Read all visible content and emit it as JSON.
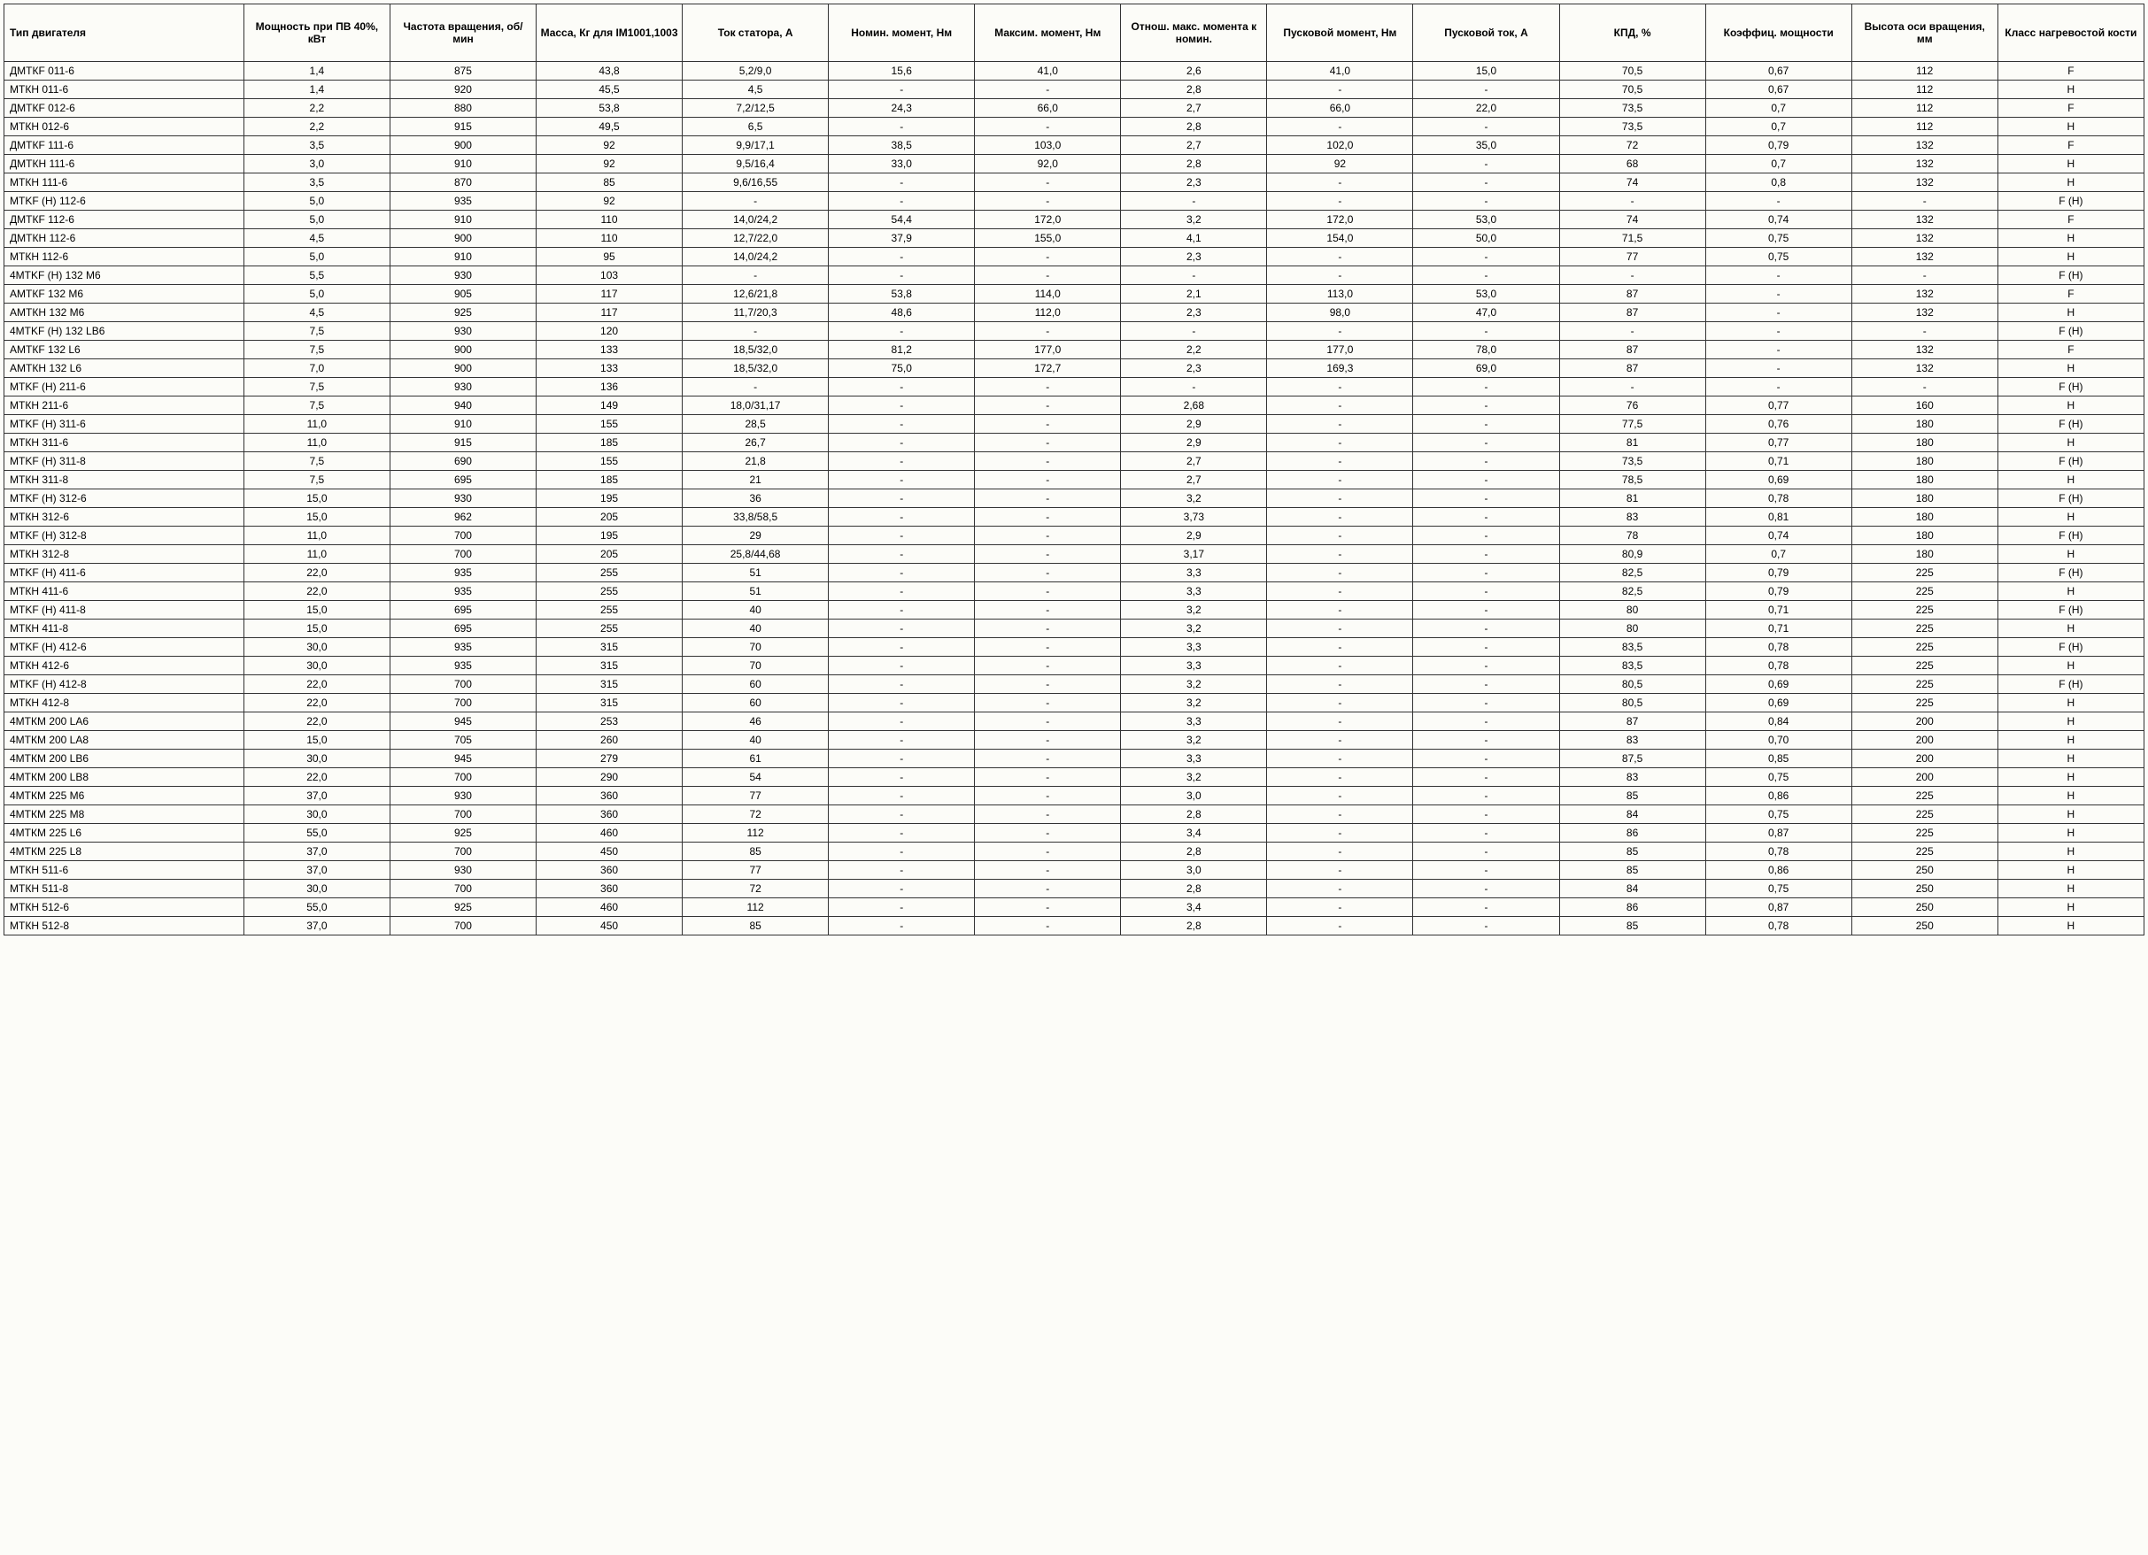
{
  "table": {
    "background_color": "#fcfcf8",
    "border_color": "#333333",
    "text_color": "#000000",
    "header_fontsize": 12,
    "cell_fontsize": 12,
    "columns": [
      {
        "label": "Тип двигателя",
        "align": "left"
      },
      {
        "label": "Мощность при ПВ 40%, кВт",
        "align": "center"
      },
      {
        "label": "Частота вращения, об/мин",
        "align": "center"
      },
      {
        "label": "Масса, Кг для IM1001,1003",
        "align": "center"
      },
      {
        "label": "Ток статора, А",
        "align": "center"
      },
      {
        "label": "Номин. момент, Нм",
        "align": "center"
      },
      {
        "label": "Максим. момент, Нм",
        "align": "center"
      },
      {
        "label": "Отнош. макс. момента к номин.",
        "align": "center"
      },
      {
        "label": "Пусковой момент, Нм",
        "align": "center"
      },
      {
        "label": "Пусковой ток, А",
        "align": "center"
      },
      {
        "label": "КПД, %",
        "align": "center"
      },
      {
        "label": "Коэффиц. мощности",
        "align": "center"
      },
      {
        "label": "Высота оси вращения, мм",
        "align": "center"
      },
      {
        "label": "Класс нагревостой кости",
        "align": "center"
      }
    ],
    "rows": [
      [
        "ДМТКF 011-6",
        "1,4",
        "875",
        "43,8",
        "5,2/9,0",
        "15,6",
        "41,0",
        "2,6",
        "41,0",
        "15,0",
        "70,5",
        "0,67",
        "112",
        "F"
      ],
      [
        "МТКН 011-6",
        "1,4",
        "920",
        "45,5",
        "4,5",
        "-",
        "-",
        "2,8",
        "-",
        "-",
        "70,5",
        "0,67",
        "112",
        "H"
      ],
      [
        "ДМТКF 012-6",
        "2,2",
        "880",
        "53,8",
        "7,2/12,5",
        "24,3",
        "66,0",
        "2,7",
        "66,0",
        "22,0",
        "73,5",
        "0,7",
        "112",
        "F"
      ],
      [
        "МТКН 012-6",
        "2,2",
        "915",
        "49,5",
        "6,5",
        "-",
        "-",
        "2,8",
        "-",
        "-",
        "73,5",
        "0,7",
        "112",
        "H"
      ],
      [
        "ДМТКF 111-6",
        "3,5",
        "900",
        "92",
        "9,9/17,1",
        "38,5",
        "103,0",
        "2,7",
        "102,0",
        "35,0",
        "72",
        "0,79",
        "132",
        "F"
      ],
      [
        "ДМТКН 111-6",
        "3,0",
        "910",
        "92",
        "9,5/16,4",
        "33,0",
        "92,0",
        "2,8",
        "92",
        "-",
        "68",
        "0,7",
        "132",
        "H"
      ],
      [
        "МТКН 111-6",
        "3,5",
        "870",
        "85",
        "9,6/16,55",
        "-",
        "-",
        "2,3",
        "-",
        "-",
        "74",
        "0,8",
        "132",
        "H"
      ],
      [
        "MTKF (H) 112-6",
        "5,0",
        "935",
        "92",
        "-",
        "-",
        "-",
        "-",
        "-",
        "-",
        "-",
        "-",
        "-",
        "F (H)"
      ],
      [
        "ДМТКF 112-6",
        "5,0",
        "910",
        "110",
        "14,0/24,2",
        "54,4",
        "172,0",
        "3,2",
        "172,0",
        "53,0",
        "74",
        "0,74",
        "132",
        "F"
      ],
      [
        "ДМТКН 112-6",
        "4,5",
        "900",
        "110",
        "12,7/22,0",
        "37,9",
        "155,0",
        "4,1",
        "154,0",
        "50,0",
        "71,5",
        "0,75",
        "132",
        "H"
      ],
      [
        "МТКН 112-6",
        "5,0",
        "910",
        "95",
        "14,0/24,2",
        "-",
        "-",
        "2,3",
        "-",
        "-",
        "77",
        "0,75",
        "132",
        "H"
      ],
      [
        "4MTKF (H) 132 M6",
        "5,5",
        "930",
        "103",
        "-",
        "-",
        "-",
        "-",
        "-",
        "-",
        "-",
        "-",
        "-",
        "F (H)"
      ],
      [
        "АМТКF 132 M6",
        "5,0",
        "905",
        "117",
        "12,6/21,8",
        "53,8",
        "114,0",
        "2,1",
        "113,0",
        "53,0",
        "87",
        "-",
        "132",
        "F"
      ],
      [
        "АМТКН 132 M6",
        "4,5",
        "925",
        "117",
        "11,7/20,3",
        "48,6",
        "112,0",
        "2,3",
        "98,0",
        "47,0",
        "87",
        "-",
        "132",
        "H"
      ],
      [
        "4MTKF (H) 132 LB6",
        "7,5",
        "930",
        "120",
        "-",
        "-",
        "-",
        "-",
        "-",
        "-",
        "-",
        "-",
        "-",
        "F (H)"
      ],
      [
        "АМТКF 132 L6",
        "7,5",
        "900",
        "133",
        "18,5/32,0",
        "81,2",
        "177,0",
        "2,2",
        "177,0",
        "78,0",
        "87",
        "-",
        "132",
        "F"
      ],
      [
        "АМТКН 132 L6",
        "7,0",
        "900",
        "133",
        "18,5/32,0",
        "75,0",
        "172,7",
        "2,3",
        "169,3",
        "69,0",
        "87",
        "-",
        "132",
        "H"
      ],
      [
        "MTKF (H) 211-6",
        "7,5",
        "930",
        "136",
        "-",
        "-",
        "-",
        "-",
        "-",
        "-",
        "-",
        "-",
        "-",
        "F (H)"
      ],
      [
        "МТКН 211-6",
        "7,5",
        "940",
        "149",
        "18,0/31,17",
        "-",
        "-",
        "2,68",
        "-",
        "-",
        "76",
        "0,77",
        "160",
        "H"
      ],
      [
        "MTKF (H) 311-6",
        "11,0",
        "910",
        "155",
        "28,5",
        "-",
        "-",
        "2,9",
        "-",
        "-",
        "77,5",
        "0,76",
        "180",
        "F (H)"
      ],
      [
        "МТКН 311-6",
        "11,0",
        "915",
        "185",
        "26,7",
        "-",
        "-",
        "2,9",
        "-",
        "-",
        "81",
        "0,77",
        "180",
        "H"
      ],
      [
        "MTKF (H) 311-8",
        "7,5",
        "690",
        "155",
        "21,8",
        "-",
        "-",
        "2,7",
        "-",
        "-",
        "73,5",
        "0,71",
        "180",
        "F (H)"
      ],
      [
        "МТКН 311-8",
        "7,5",
        "695",
        "185",
        "21",
        "-",
        "-",
        "2,7",
        "-",
        "-",
        "78,5",
        "0,69",
        "180",
        "H"
      ],
      [
        "MTKF (H) 312-6",
        "15,0",
        "930",
        "195",
        "36",
        "-",
        "-",
        "3,2",
        "-",
        "-",
        "81",
        "0,78",
        "180",
        "F (H)"
      ],
      [
        "МТКН 312-6",
        "15,0",
        "962",
        "205",
        "33,8/58,5",
        "-",
        "-",
        "3,73",
        "-",
        "-",
        "83",
        "0,81",
        "180",
        "H"
      ],
      [
        "MTKF (H) 312-8",
        "11,0",
        "700",
        "195",
        "29",
        "-",
        "-",
        "2,9",
        "-",
        "-",
        "78",
        "0,74",
        "180",
        "F (H)"
      ],
      [
        "МТКН 312-8",
        "11,0",
        "700",
        "205",
        "25,8/44,68",
        "-",
        "-",
        "3,17",
        "-",
        "-",
        "80,9",
        "0,7",
        "180",
        "H"
      ],
      [
        "MTKF (H) 411-6",
        "22,0",
        "935",
        "255",
        "51",
        "-",
        "-",
        "3,3",
        "-",
        "-",
        "82,5",
        "0,79",
        "225",
        "F (H)"
      ],
      [
        "МТКН 411-6",
        "22,0",
        "935",
        "255",
        "51",
        "-",
        "-",
        "3,3",
        "-",
        "-",
        "82,5",
        "0,79",
        "225",
        "H"
      ],
      [
        "MTKF (H) 411-8",
        "15,0",
        "695",
        "255",
        "40",
        "-",
        "-",
        "3,2",
        "-",
        "-",
        "80",
        "0,71",
        "225",
        "F (H)"
      ],
      [
        "МТКН 411-8",
        "15,0",
        "695",
        "255",
        "40",
        "-",
        "-",
        "3,2",
        "-",
        "-",
        "80",
        "0,71",
        "225",
        "H"
      ],
      [
        "MTKF (H) 412-6",
        "30,0",
        "935",
        "315",
        "70",
        "-",
        "-",
        "3,3",
        "-",
        "-",
        "83,5",
        "0,78",
        "225",
        "F (H)"
      ],
      [
        "МТКН 412-6",
        "30,0",
        "935",
        "315",
        "70",
        "-",
        "-",
        "3,3",
        "-",
        "-",
        "83,5",
        "0,78",
        "225",
        "H"
      ],
      [
        "MTKF (H) 412-8",
        "22,0",
        "700",
        "315",
        "60",
        "-",
        "-",
        "3,2",
        "-",
        "-",
        "80,5",
        "0,69",
        "225",
        "F (H)"
      ],
      [
        "МТКН 412-8",
        "22,0",
        "700",
        "315",
        "60",
        "-",
        "-",
        "3,2",
        "-",
        "-",
        "80,5",
        "0,69",
        "225",
        "H"
      ],
      [
        "4МТКМ 200 LA6",
        "22,0",
        "945",
        "253",
        "46",
        "-",
        "-",
        "3,3",
        "-",
        "-",
        "87",
        "0,84",
        "200",
        "H"
      ],
      [
        "4МТКМ 200 LA8",
        "15,0",
        "705",
        "260",
        "40",
        "-",
        "-",
        "3,2",
        "-",
        "-",
        "83",
        "0,70",
        "200",
        "H"
      ],
      [
        "4МТКМ 200 LB6",
        "30,0",
        "945",
        "279",
        "61",
        "-",
        "-",
        "3,3",
        "-",
        "-",
        "87,5",
        "0,85",
        "200",
        "H"
      ],
      [
        "4МТКМ 200 LB8",
        "22,0",
        "700",
        "290",
        "54",
        "-",
        "-",
        "3,2",
        "-",
        "-",
        "83",
        "0,75",
        "200",
        "H"
      ],
      [
        "4МТКМ 225 M6",
        "37,0",
        "930",
        "360",
        "77",
        "-",
        "-",
        "3,0",
        "-",
        "-",
        "85",
        "0,86",
        "225",
        "H"
      ],
      [
        "4МТКМ 225 M8",
        "30,0",
        "700",
        "360",
        "72",
        "-",
        "-",
        "2,8",
        "-",
        "-",
        "84",
        "0,75",
        "225",
        "H"
      ],
      [
        "4МТКМ 225 L6",
        "55,0",
        "925",
        "460",
        "112",
        "-",
        "-",
        "3,4",
        "-",
        "-",
        "86",
        "0,87",
        "225",
        "H"
      ],
      [
        "4МТКМ 225 L8",
        "37,0",
        "700",
        "450",
        "85",
        "-",
        "-",
        "2,8",
        "-",
        "-",
        "85",
        "0,78",
        "225",
        "H"
      ],
      [
        "МТКН 511-6",
        "37,0",
        "930",
        "360",
        "77",
        "-",
        "-",
        "3,0",
        "-",
        "-",
        "85",
        "0,86",
        "250",
        "H"
      ],
      [
        "МТКН 511-8",
        "30,0",
        "700",
        "360",
        "72",
        "-",
        "-",
        "2,8",
        "-",
        "-",
        "84",
        "0,75",
        "250",
        "H"
      ],
      [
        "МТКН 512-6",
        "55,0",
        "925",
        "460",
        "112",
        "-",
        "-",
        "3,4",
        "-",
        "-",
        "86",
        "0,87",
        "250",
        "H"
      ],
      [
        "МТКН 512-8",
        "37,0",
        "700",
        "450",
        "85",
        "-",
        "-",
        "2,8",
        "-",
        "-",
        "85",
        "0,78",
        "250",
        "H"
      ]
    ]
  }
}
